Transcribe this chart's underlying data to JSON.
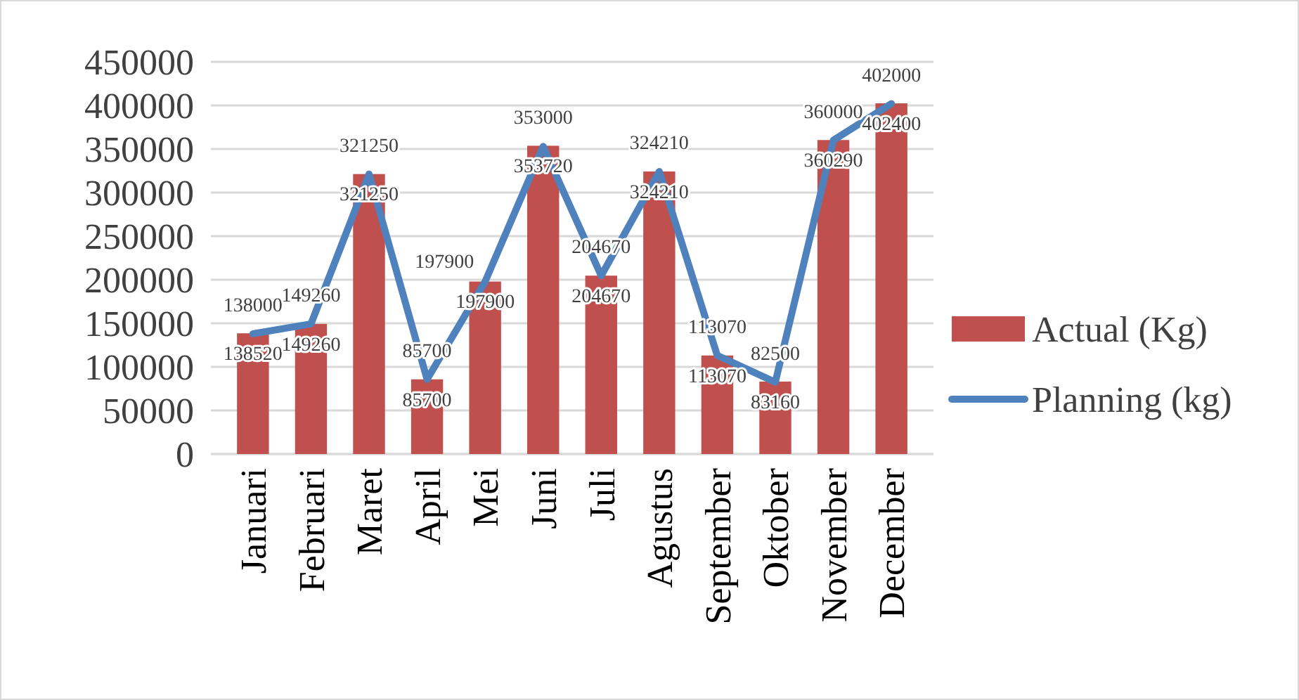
{
  "chart_data": {
    "type": "bar",
    "categories": [
      "Januari",
      "Februari",
      "Maret",
      "April",
      "Mei",
      "Juni",
      "Juli",
      "Agustus",
      "September",
      "Oktober",
      "November",
      "December"
    ],
    "series": [
      {
        "name": "Actual (Kg)",
        "color": "#c0504d",
        "values": [
          138520,
          149260,
          321250,
          85700,
          197900,
          353720,
          204670,
          324210,
          113070,
          83160,
          360290,
          402400
        ]
      },
      {
        "name": "Planning (kg)",
        "type": "line",
        "color": "#4f81bd",
        "values": [
          138000,
          149260,
          321250,
          85700,
          197900,
          353000,
          204670,
          324210,
          113070,
          82500,
          360000,
          402000
        ]
      }
    ],
    "ylim": [
      0,
      450000
    ],
    "yticks": [
      0,
      50000,
      100000,
      150000,
      200000,
      250000,
      300000,
      350000,
      400000,
      450000
    ],
    "grid": "y",
    "legend": "right",
    "data_labels": true,
    "marker": "none",
    "line_style": "solid"
  }
}
